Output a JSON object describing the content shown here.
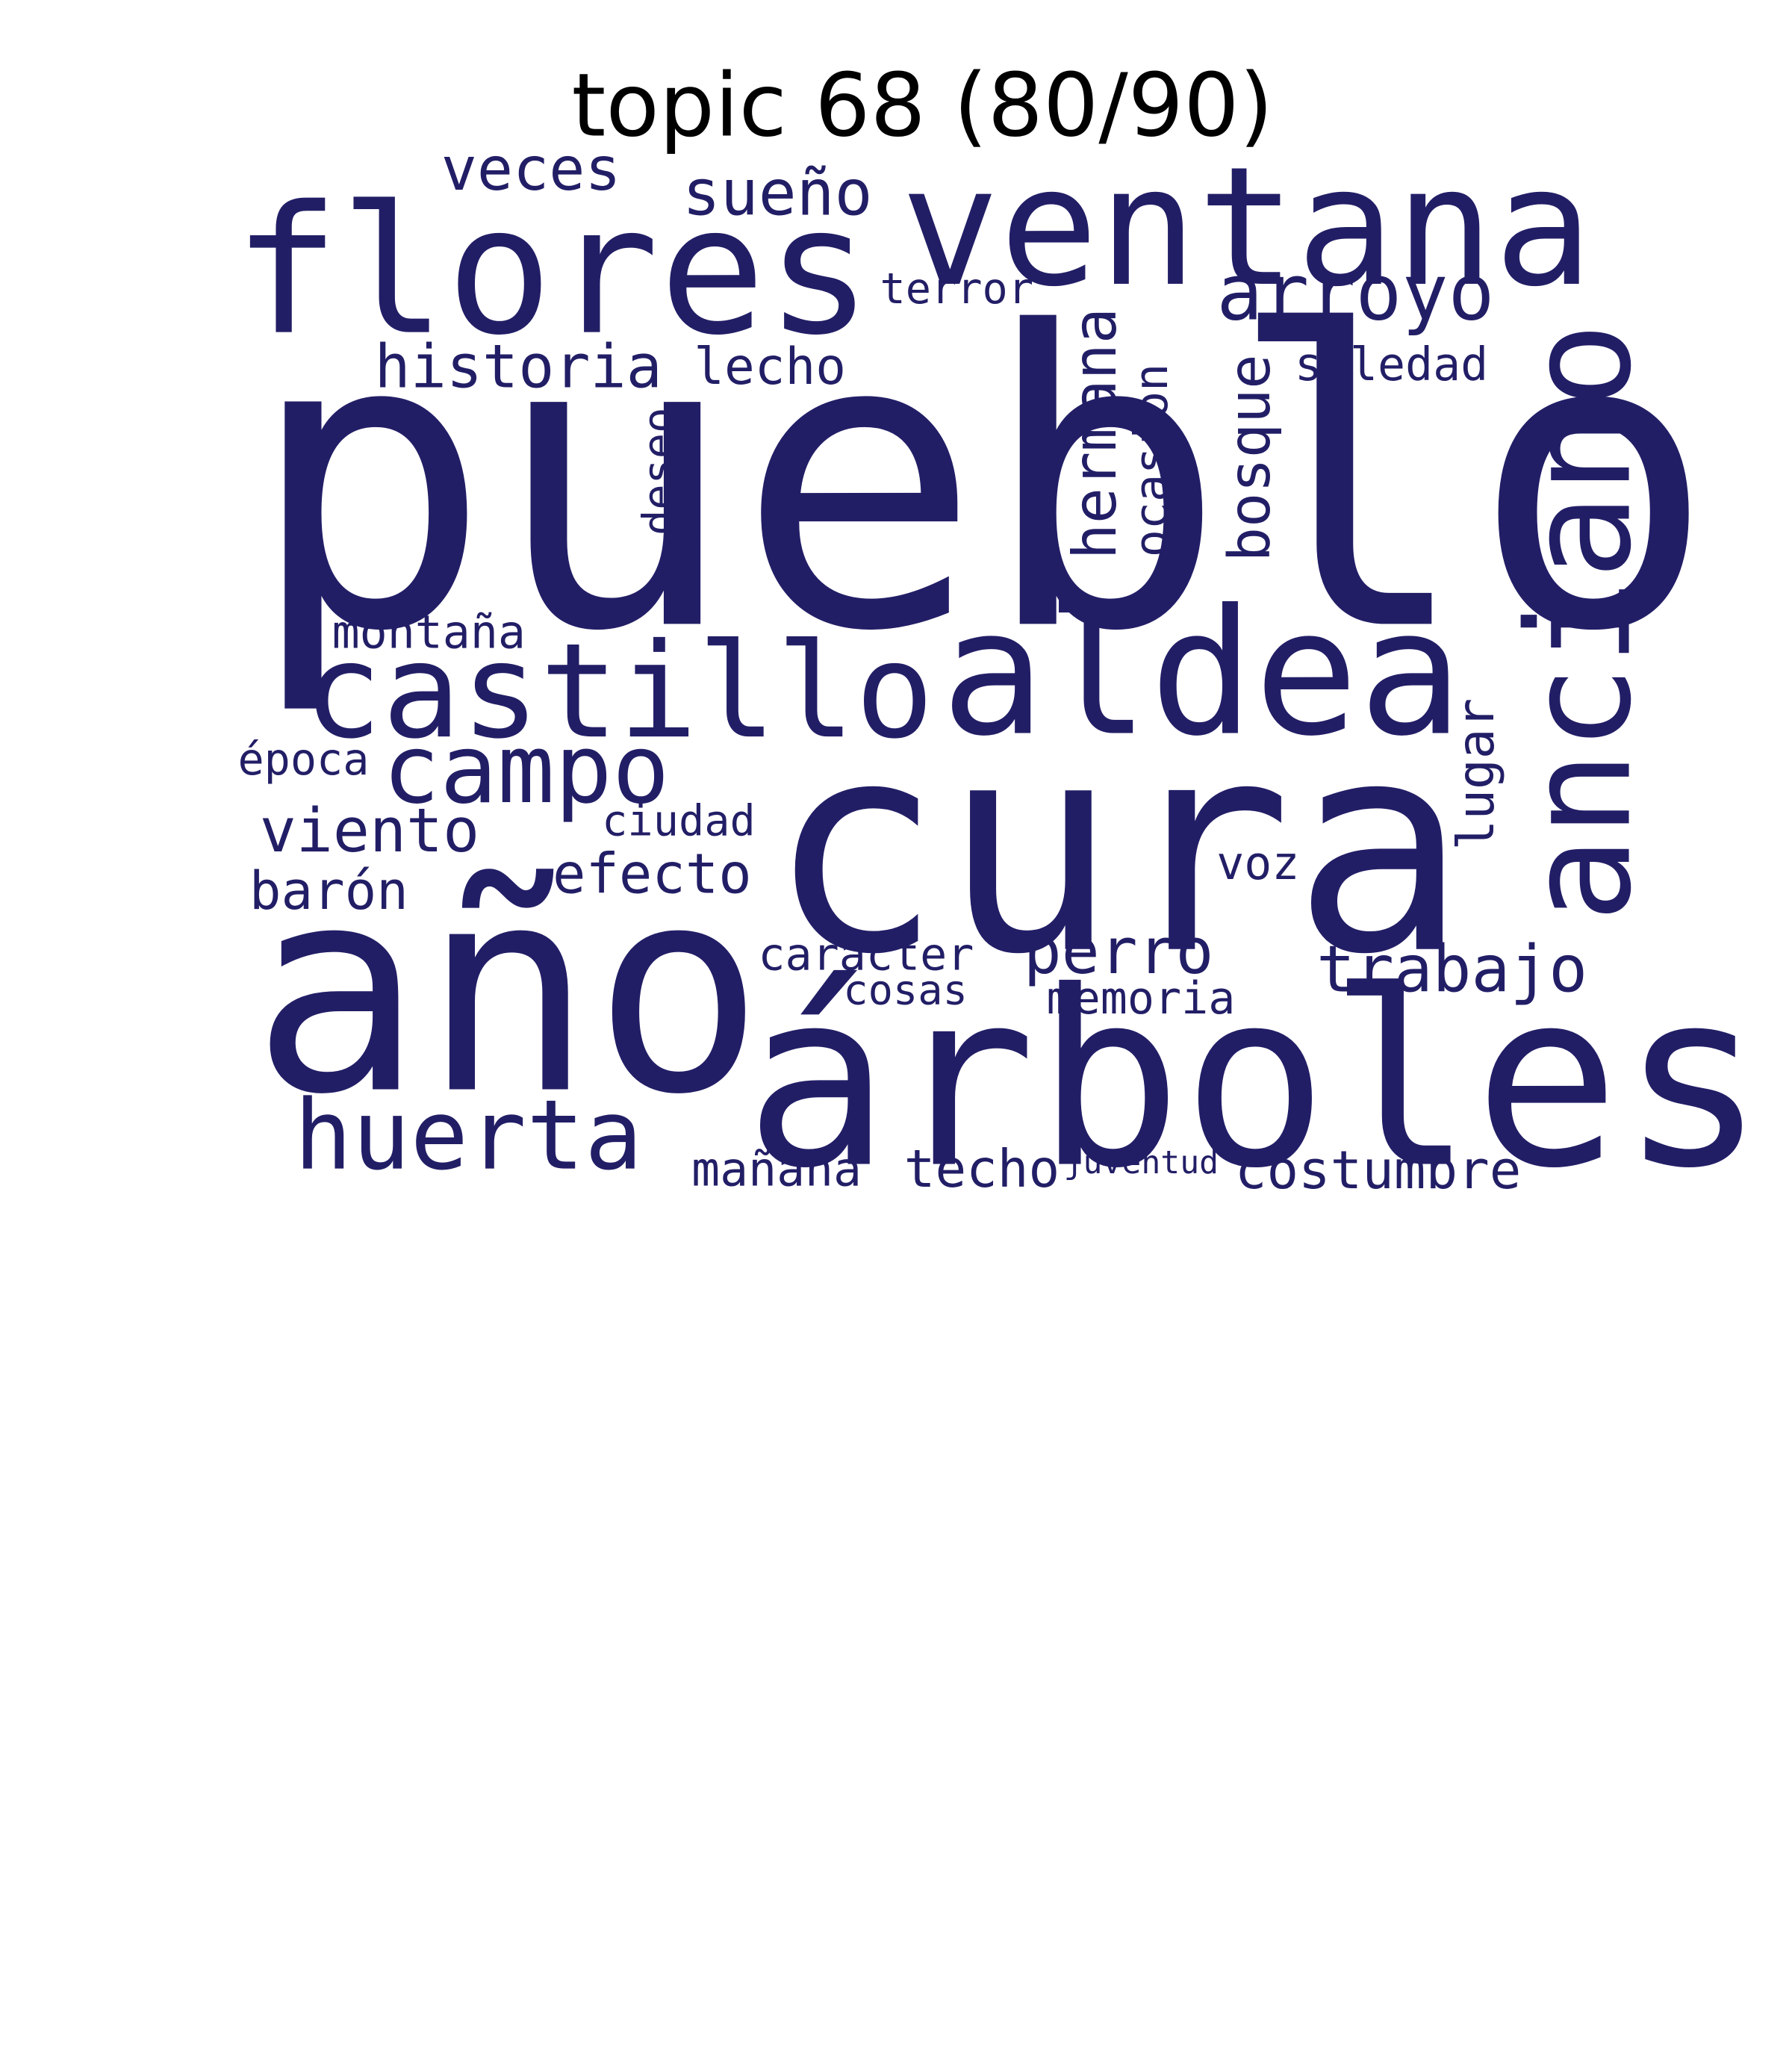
{
  "title": "topic 68 (80/90)",
  "word_color": "#221e66",
  "words": [
    "pueblo",
    "cura",
    "año",
    "árboles",
    "ventana",
    "flores",
    "aldea",
    "castillo",
    "anciano",
    "huerta",
    "campo",
    "arroyo",
    "sueño",
    "veces",
    "historia",
    "lecho",
    "terror",
    "soledad",
    "hermana",
    "bosque",
    "ocasión",
    "deseo",
    "montaña",
    "época",
    "viento",
    "ciudad",
    "efecto",
    "barón",
    "lugar",
    "voz",
    "perro",
    "trabajo",
    "carácter",
    "cosas",
    "memoria",
    "mañana",
    "techo",
    "juventud",
    "costumbre"
  ]
}
